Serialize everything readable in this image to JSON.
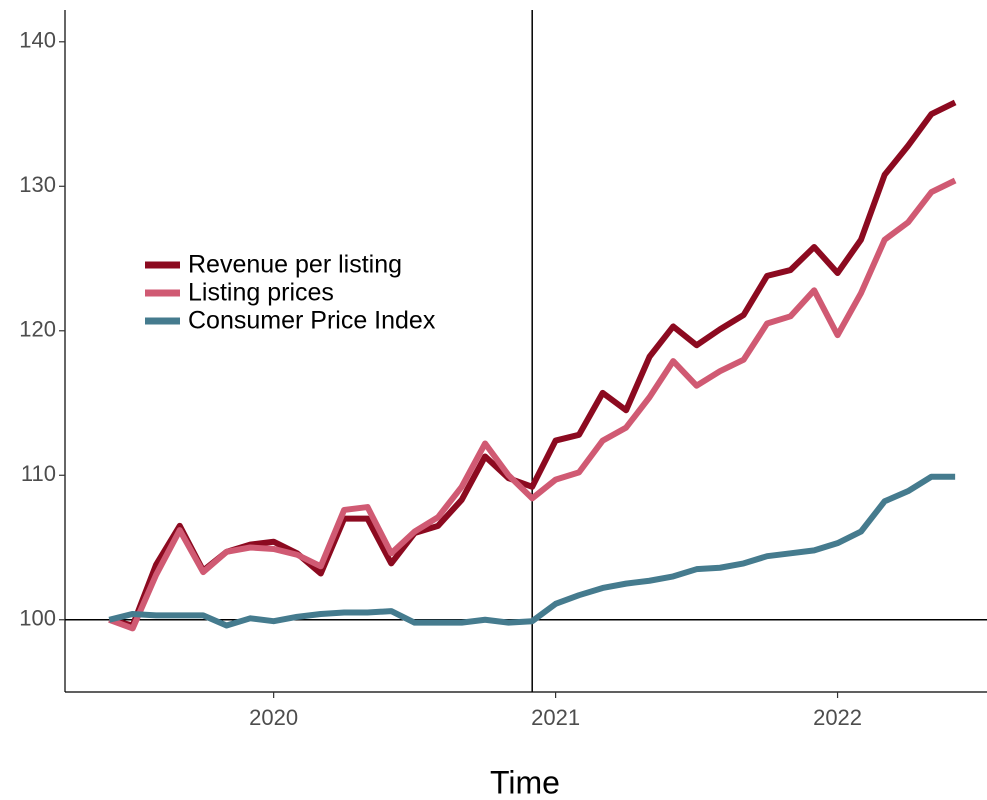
{
  "chart_data": {
    "type": "line",
    "x_label": "Time",
    "x": [
      2019.417,
      2019.5,
      2019.583,
      2019.667,
      2019.75,
      2019.833,
      2019.917,
      2020.0,
      2020.083,
      2020.167,
      2020.25,
      2020.333,
      2020.417,
      2020.5,
      2020.583,
      2020.667,
      2020.75,
      2020.833,
      2020.917,
      2021.0,
      2021.083,
      2021.167,
      2021.25,
      2021.333,
      2021.417,
      2021.5,
      2021.583,
      2021.667,
      2021.75,
      2021.833,
      2021.917,
      2022.0,
      2022.083,
      2022.167,
      2022.25,
      2022.333,
      2022.417
    ],
    "series": [
      {
        "name": "Revenue per listing",
        "color": "#8c0a20",
        "values": [
          100,
          99.6,
          103.8,
          106.5,
          103.4,
          104.7,
          105.2,
          105.4,
          104.6,
          103.2,
          107.0,
          107.0,
          103.9,
          106.0,
          106.5,
          108.3,
          111.3,
          109.8,
          109.2,
          112.4,
          112.8,
          115.7,
          114.5,
          118.2,
          120.3,
          119.0,
          120.1,
          121.1,
          123.8,
          124.2,
          125.8,
          124.0,
          126.3,
          130.8,
          132.8,
          135.0,
          135.8
        ]
      },
      {
        "name": "Listing prices",
        "color": "#d05a73",
        "values": [
          100,
          99.4,
          103.1,
          106.2,
          103.3,
          104.7,
          105.0,
          104.9,
          104.5,
          103.7,
          107.6,
          107.8,
          104.6,
          106.1,
          107.1,
          109.2,
          112.2,
          110.0,
          108.4,
          109.7,
          110.2,
          112.4,
          113.3,
          115.4,
          117.9,
          116.2,
          117.2,
          118.0,
          120.5,
          121.0,
          122.8,
          119.7,
          122.6,
          126.3,
          127.5,
          129.6,
          130.4
        ]
      },
      {
        "name": "Consumer Price Index",
        "color": "#457b8e",
        "values": [
          100,
          100.4,
          100.3,
          100.3,
          100.3,
          99.6,
          100.1,
          99.9,
          100.2,
          100.4,
          100.5,
          100.5,
          100.6,
          99.8,
          99.8,
          99.8,
          100.0,
          99.8,
          99.9,
          101.1,
          101.7,
          102.2,
          102.5,
          102.7,
          103.0,
          103.5,
          103.6,
          103.9,
          104.4,
          104.6,
          104.8,
          105.3,
          106.1,
          108.2,
          108.9,
          109.9,
          109.9
        ]
      }
    ],
    "xlim": [
      2019.26,
      2022.53
    ],
    "xticks": [
      2020,
      2021,
      2022
    ],
    "ylim": [
      95,
      142.2
    ],
    "yticks": [
      100,
      110,
      120,
      130,
      140
    ],
    "hlines": [
      100
    ],
    "vlines": [
      2020.917
    ],
    "grid": false,
    "legend": "left"
  }
}
